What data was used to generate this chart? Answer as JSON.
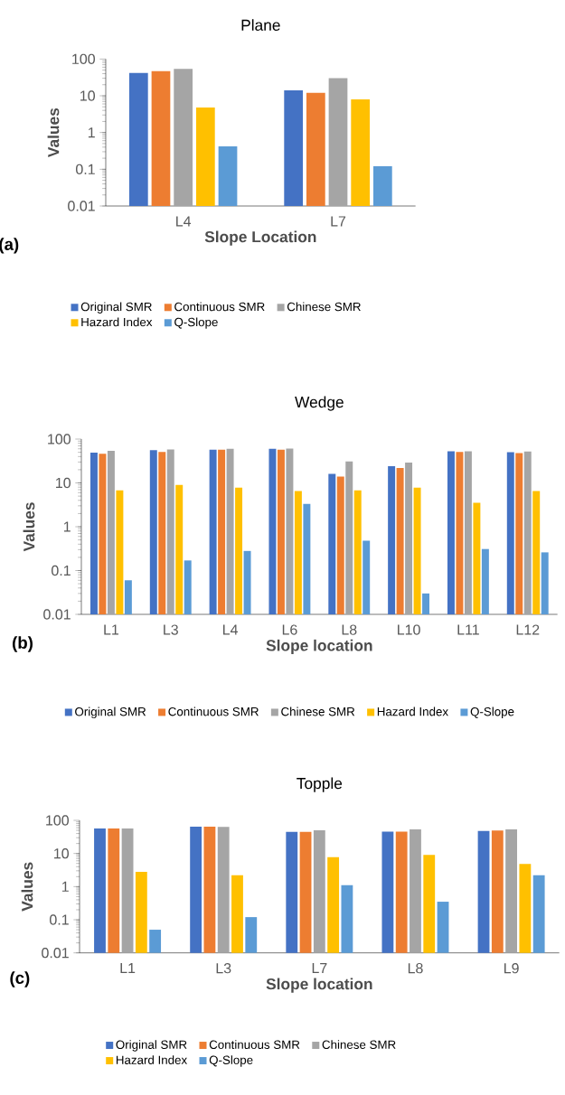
{
  "chart_data": [
    {
      "type": "bar",
      "title": "Plane",
      "xlabel": "Slope Location",
      "ylabel": "Values",
      "annotations": [
        "(a)"
      ],
      "log": true,
      "legend": "bottom",
      "categories": [
        "L4",
        "L7"
      ],
      "ylim": [
        0.01,
        100
      ],
      "yticks": [
        0.01,
        0.1,
        1,
        10,
        100
      ],
      "series": [
        {
          "name": "Original SMR",
          "color": "#4472c4",
          "values": [
            42,
            14
          ]
        },
        {
          "name": "Continuous SMR",
          "color": "#ed7d31",
          "values": [
            47,
            12
          ]
        },
        {
          "name": "Chinese SMR",
          "color": "#a5a5a5",
          "values": [
            54,
            30
          ]
        },
        {
          "name": "Hazard Index",
          "color": "#ffc000",
          "values": [
            4.8,
            8
          ]
        },
        {
          "name": "Q-Slope",
          "color": "#5b9bd5",
          "values": [
            0.42,
            0.12
          ]
        }
      ]
    },
    {
      "type": "bar",
      "title": "Wedge",
      "xlabel": "Slope location",
      "ylabel": "Values",
      "annotations": [
        "(b)"
      ],
      "log": true,
      "legend": "bottom",
      "categories": [
        "L1",
        "L3",
        "L4",
        "L6",
        "L8",
        "L10",
        "L11",
        "L12"
      ],
      "ylim": [
        0.01,
        100
      ],
      "yticks": [
        0.01,
        0.1,
        1,
        10,
        100
      ],
      "series": [
        {
          "name": "Original SMR",
          "color": "#4472c4",
          "values": [
            49,
            56,
            57,
            60,
            16,
            24,
            53,
            50
          ]
        },
        {
          "name": "Continuous SMR",
          "color": "#ed7d31",
          "values": [
            46,
            51,
            57,
            57,
            14,
            22,
            51,
            48
          ]
        },
        {
          "name": "Chinese SMR",
          "color": "#a5a5a5",
          "values": [
            54,
            58,
            60,
            61,
            31,
            29,
            53,
            52
          ]
        },
        {
          "name": "Hazard Index",
          "color": "#ffc000",
          "values": [
            6.8,
            9,
            7.8,
            6.5,
            6.8,
            7.8,
            3.5,
            6.5
          ]
        },
        {
          "name": "Q-Slope",
          "color": "#5b9bd5",
          "values": [
            0.06,
            0.17,
            0.28,
            3.3,
            0.48,
            0.03,
            0.31,
            0.26
          ]
        }
      ]
    },
    {
      "type": "bar",
      "title": "Topple",
      "xlabel": "Slope location",
      "ylabel": "Values",
      "annotations": [
        "(c)"
      ],
      "log": true,
      "legend": "bottom",
      "categories": [
        "L1",
        "L3",
        "L7",
        "L8",
        "L9"
      ],
      "ylim": [
        0.01,
        100
      ],
      "yticks": [
        0.01,
        0.1,
        1,
        10,
        100
      ],
      "series": [
        {
          "name": "Original SMR",
          "color": "#4472c4",
          "values": [
            57,
            64,
            45,
            46,
            48
          ]
        },
        {
          "name": "Continuous SMR",
          "color": "#ed7d31",
          "values": [
            57,
            64,
            45,
            46,
            49
          ]
        },
        {
          "name": "Chinese SMR",
          "color": "#a5a5a5",
          "values": [
            57,
            63,
            50,
            53,
            53
          ]
        },
        {
          "name": "Hazard Index",
          "color": "#ffc000",
          "values": [
            2.8,
            2.2,
            7.8,
            9,
            4.8
          ]
        },
        {
          "name": "Q-Slope",
          "color": "#5b9bd5",
          "values": [
            0.05,
            0.12,
            1.1,
            0.35,
            2.2
          ]
        }
      ]
    }
  ]
}
